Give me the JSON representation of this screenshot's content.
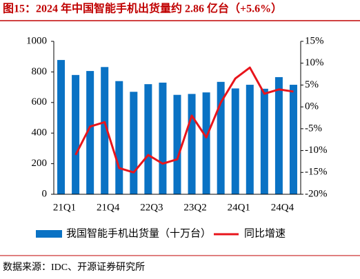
{
  "chart_data": {
    "type": "bar-line",
    "title": "图15：2024 年中国智能手机出货量约 2.86 亿台（+5.6%）",
    "source": "数据来源：IDC、开源证券研究所",
    "categories": [
      "21Q1",
      null,
      null,
      "21Q4",
      null,
      null,
      "22Q3",
      null,
      null,
      "23Q2",
      null,
      null,
      "24Q1",
      null,
      null,
      "24Q4",
      null
    ],
    "series": [
      {
        "name": "我国智能手机出货量（十万台）",
        "type": "bar",
        "color": "#0a72c4",
        "values": [
          878,
          780,
          806,
          832,
          740,
          670,
          720,
          730,
          650,
          656,
          666,
          735,
          692,
          716,
          690,
          766,
          716
        ]
      },
      {
        "name": "同比增速",
        "type": "line",
        "axis": "y2",
        "color": "#e8141b",
        "values": [
          null,
          -11,
          -4.5,
          -3.5,
          -14,
          -15,
          -11,
          -13,
          -12,
          -2,
          -7,
          1,
          6.5,
          9,
          3,
          4,
          3.5
        ]
      }
    ],
    "ylim": [
      0,
      1000
    ],
    "yticks": [
      0,
      200,
      400,
      600,
      800,
      1000
    ],
    "y2lim": [
      -20,
      15
    ],
    "y2ticks": [
      {
        "value": -20,
        "label": "-20%"
      },
      {
        "value": -15,
        "label": "-15%"
      },
      {
        "value": -10,
        "label": "-10%"
      },
      {
        "value": -5,
        "label": "-5%"
      },
      {
        "value": 0,
        "label": "0%"
      },
      {
        "value": 5,
        "label": "5%"
      },
      {
        "value": 10,
        "label": "10%"
      },
      {
        "value": 15,
        "label": "15%"
      }
    ]
  }
}
